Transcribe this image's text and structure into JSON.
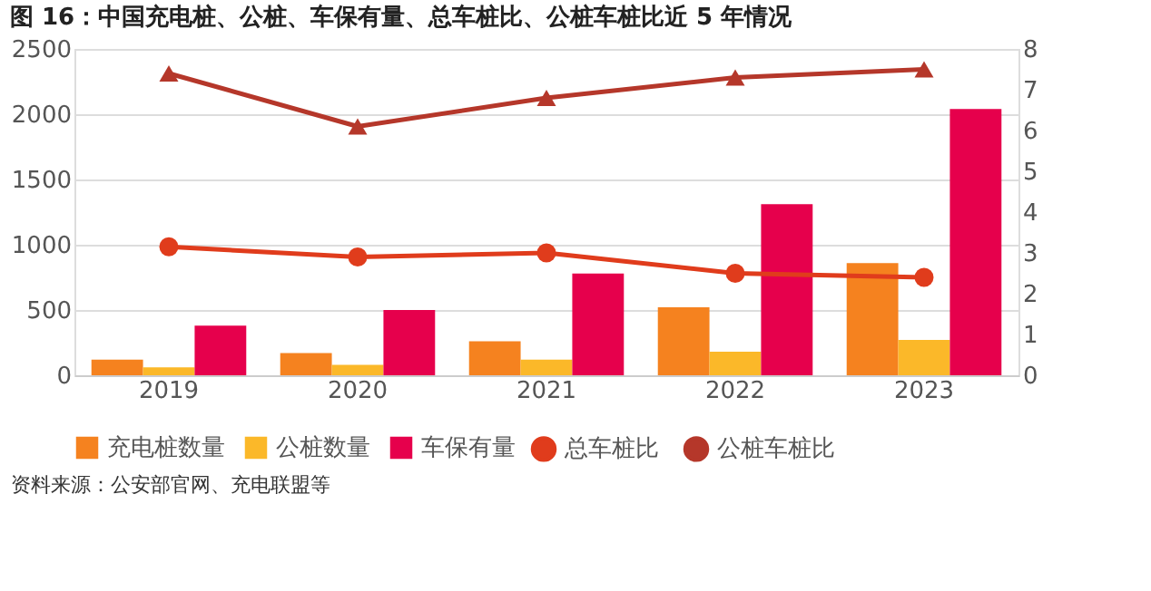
{
  "chart_data": {
    "type": "bar",
    "title": "图 16：中国充电桩、公桩、车保有量、总车桩比、公桩车桩比近 5 年情况",
    "categories": [
      "2019",
      "2020",
      "2021",
      "2022",
      "2023"
    ],
    "series": [
      {
        "name": "充电桩数量",
        "color": "#f5821f",
        "values": [
          120,
          170,
          260,
          520,
          860
        ]
      },
      {
        "name": "公桩数量",
        "color": "#fbb829",
        "values": [
          60,
          80,
          120,
          180,
          270
        ]
      },
      {
        "name": "车保有量",
        "color": "#e6004c",
        "values": [
          380,
          500,
          780,
          1310,
          2040
        ]
      },
      {
        "name": "总车桩比",
        "type": "line",
        "axis": "y2",
        "marker": "circle",
        "color": "#e03c1c",
        "values": [
          3.15,
          2.9,
          3.0,
          2.5,
          2.4
        ]
      },
      {
        "name": "公桩车桩比",
        "type": "line",
        "axis": "y2",
        "marker": "triangle",
        "color": "#b5372a",
        "values": [
          7.4,
          6.1,
          6.8,
          7.3,
          7.5
        ]
      }
    ],
    "ylim": [
      0,
      2500
    ],
    "yticks": [
      0,
      500,
      1000,
      1500,
      2000,
      2500
    ],
    "y2lim": [
      0,
      8
    ],
    "y2ticks": [
      0,
      1,
      2,
      3,
      4,
      5,
      6,
      7,
      8
    ],
    "grid": "y",
    "legend": "bottom",
    "annotations": [
      "资料来源：公安部官网、充电联盟等"
    ]
  }
}
